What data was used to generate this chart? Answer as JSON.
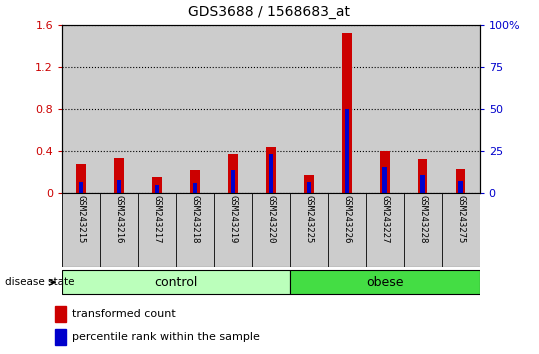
{
  "title": "GDS3688 / 1568683_at",
  "samples": [
    "GSM243215",
    "GSM243216",
    "GSM243217",
    "GSM243218",
    "GSM243219",
    "GSM243220",
    "GSM243225",
    "GSM243226",
    "GSM243227",
    "GSM243228",
    "GSM243275"
  ],
  "transformed_count": [
    0.28,
    0.33,
    0.15,
    0.22,
    0.37,
    0.44,
    0.17,
    1.52,
    0.4,
    0.32,
    0.23
  ],
  "percentile_rank_scaled": [
    0.1,
    0.12,
    0.08,
    0.09,
    0.22,
    0.37,
    0.1,
    0.8,
    0.25,
    0.17,
    0.11
  ],
  "groups": [
    {
      "label": "control",
      "start": 0,
      "end": 6,
      "color": "#bbffbb"
    },
    {
      "label": "obese",
      "start": 6,
      "end": 11,
      "color": "#44dd44"
    }
  ],
  "ylim_left": [
    0,
    1.6
  ],
  "ylim_right": [
    0,
    100
  ],
  "yticks_left": [
    0,
    0.4,
    0.8,
    1.2,
    1.6
  ],
  "yticks_right": [
    0,
    25,
    50,
    75,
    100
  ],
  "yticklabels_right": [
    "0",
    "25",
    "50",
    "75",
    "100%"
  ],
  "red_color": "#cc0000",
  "blue_color": "#0000cc",
  "background_color": "#ffffff",
  "plot_bg_color": "#cccccc",
  "label_transformed": "transformed count",
  "label_percentile": "percentile rank within the sample",
  "disease_state_label": "disease state",
  "title_fontsize": 10,
  "bar_width": 0.25,
  "blue_bar_width": 0.12
}
